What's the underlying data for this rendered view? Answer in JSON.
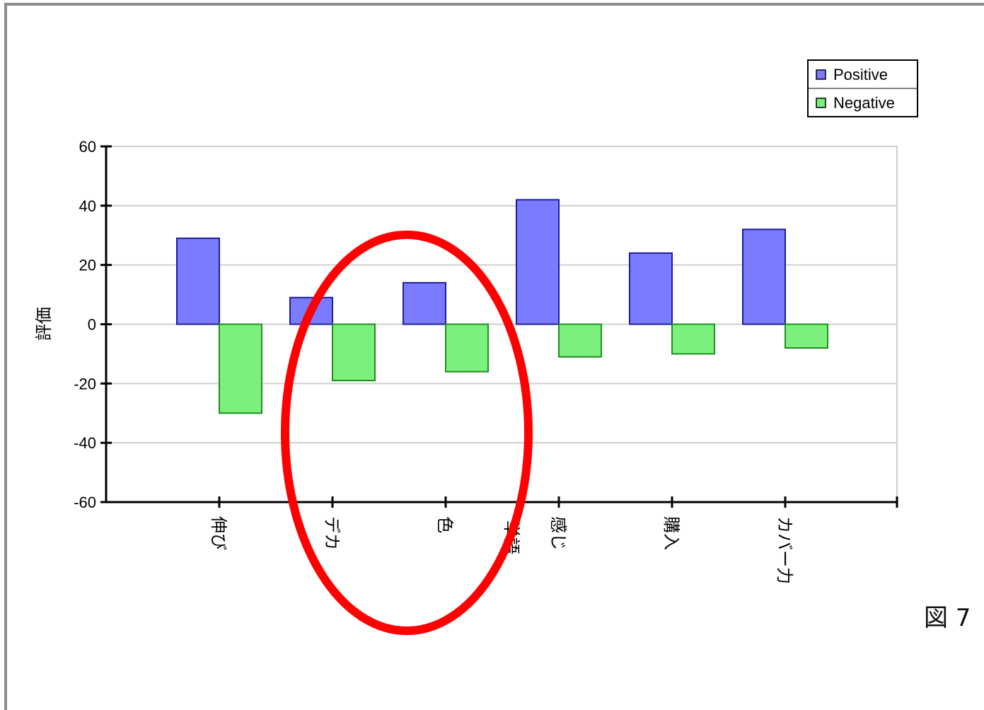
{
  "chart_data": {
    "type": "bar",
    "categories": [
      "伸び",
      "デカ",
      "色",
      "感じ",
      "購入",
      "カバー力"
    ],
    "series": [
      {
        "name": "Positive",
        "values": [
          29,
          9,
          14,
          42,
          24,
          32
        ],
        "color": "#7b7bff",
        "stroke": "#1c1c9c"
      },
      {
        "name": "Negative",
        "values": [
          -30,
          -19,
          -16,
          -11,
          -10,
          -8
        ],
        "color": "#7cf07c",
        "stroke": "#1f8f1f"
      }
    ],
    "xlabel": "単語",
    "ylabel": "評価",
    "ylim": [
      -60,
      60
    ],
    "yticks": [
      60,
      40,
      20,
      0,
      -20,
      -40,
      -60
    ],
    "grid": true,
    "legend_position": "top-right",
    "annotation": {
      "shape": "ellipse",
      "color": "#ff0000",
      "highlights": [
        "デカ",
        "色"
      ]
    }
  },
  "figure_label": "図 7"
}
